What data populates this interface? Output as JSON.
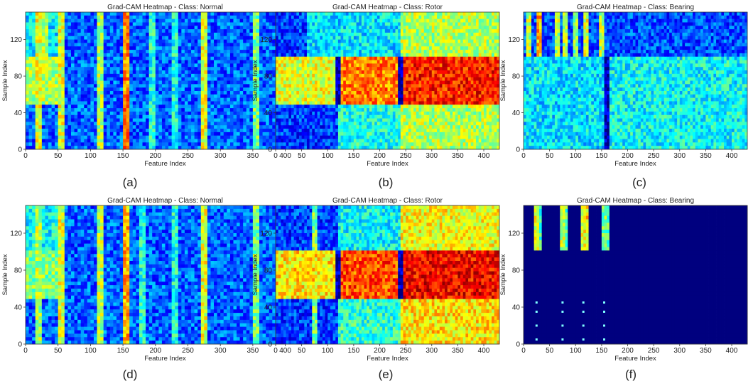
{
  "figure": {
    "colormap": "jet",
    "colors": {
      "jet": [
        "#00007f",
        "#0000ff",
        "#007fff",
        "#00ffff",
        "#7fff7f",
        "#ffff00",
        "#ff7f00",
        "#ff0000",
        "#7f0000"
      ],
      "background": "#ffffff",
      "text": "#222222"
    }
  },
  "chart_data": [
    {
      "type": "heatmap",
      "panel_label": "(a)",
      "title": "Grad-CAM Heatmap - Class: Normal",
      "xlabel": "Feature Index",
      "ylabel": "Sample Index",
      "xlim": [
        0,
        430
      ],
      "ylim": [
        0,
        150
      ],
      "xticks": [
        0,
        50,
        100,
        150,
        200,
        250,
        300,
        350,
        400
      ],
      "yticks": [
        0,
        40,
        80,
        120
      ],
      "base_intensity": 0.22,
      "blocks": [
        {
          "x0": 0,
          "x1": 60,
          "y0": 50,
          "y1": 100,
          "v": 0.55
        },
        {
          "x0": 0,
          "x1": 60,
          "y0": 100,
          "y1": 150,
          "v": 0.35
        }
      ],
      "stripes": [
        {
          "x": 20,
          "y0": 0,
          "y1": 150,
          "v": 0.6
        },
        {
          "x": 30,
          "y0": 50,
          "y1": 150,
          "v": 0.55
        },
        {
          "x": 55,
          "y0": 0,
          "y1": 150,
          "v": 0.6
        },
        {
          "x": 115,
          "y0": 0,
          "y1": 150,
          "v": 0.55
        },
        {
          "x": 155,
          "y0": 0,
          "y1": 150,
          "v": 0.75
        },
        {
          "x": 195,
          "y0": 0,
          "y1": 150,
          "v": 0.4
        },
        {
          "x": 230,
          "y0": 0,
          "y1": 150,
          "v": 0.4
        },
        {
          "x": 275,
          "y0": 0,
          "y1": 150,
          "v": 0.6
        },
        {
          "x": 355,
          "y0": 0,
          "y1": 150,
          "v": 0.5
        },
        {
          "x": 400,
          "y0": 0,
          "y1": 150,
          "v": 0.4
        }
      ]
    },
    {
      "type": "heatmap",
      "panel_label": "(b)",
      "title": "Grad-CAM Heatmap - Class: Rotor",
      "xlabel": "Feature Index",
      "ylabel": "Sample Index",
      "xlim": [
        0,
        430
      ],
      "ylim": [
        0,
        150
      ],
      "xticks": [
        0,
        50,
        100,
        150,
        200,
        250,
        300,
        350,
        400
      ],
      "yticks": [
        0,
        40,
        80,
        120
      ],
      "base_intensity": 0.18,
      "blocks": [
        {
          "x0": 0,
          "x1": 120,
          "y0": 50,
          "y1": 100,
          "v": 0.6
        },
        {
          "x0": 120,
          "x1": 240,
          "y0": 50,
          "y1": 100,
          "v": 0.75
        },
        {
          "x0": 240,
          "x1": 430,
          "y0": 50,
          "y1": 100,
          "v": 0.85
        },
        {
          "x0": 120,
          "x1": 240,
          "y0": 0,
          "y1": 50,
          "v": 0.4
        },
        {
          "x0": 240,
          "x1": 430,
          "y0": 0,
          "y1": 50,
          "v": 0.55
        },
        {
          "x0": 60,
          "x1": 240,
          "y0": 100,
          "y1": 150,
          "v": 0.35
        },
        {
          "x0": 240,
          "x1": 430,
          "y0": 100,
          "y1": 150,
          "v": 0.55
        }
      ],
      "stripes": [
        {
          "x": 120,
          "y0": 50,
          "y1": 100,
          "v": 0.05
        },
        {
          "x": 240,
          "y0": 50,
          "y1": 100,
          "v": 0.05
        },
        {
          "x": 310,
          "y0": 50,
          "y1": 100,
          "v": 0.2
        },
        {
          "x": 380,
          "y0": 50,
          "y1": 100,
          "v": 0.3
        },
        {
          "x": 405,
          "y0": 50,
          "y1": 100,
          "v": 0.3
        }
      ]
    },
    {
      "type": "heatmap",
      "panel_label": "(c)",
      "title": "Grad-CAM Heatmap - Class: Bearing",
      "xlabel": "Feature Index",
      "ylabel": "Sample Index",
      "xlim": [
        0,
        430
      ],
      "ylim": [
        0,
        150
      ],
      "xticks": [
        0,
        50,
        100,
        150,
        200,
        250,
        300,
        350,
        400
      ],
      "yticks": [
        0,
        40,
        80,
        120
      ],
      "base_intensity": 0.2,
      "blocks": [
        {
          "x0": 0,
          "x1": 160,
          "y0": 0,
          "y1": 100,
          "v": 0.35
        },
        {
          "x0": 160,
          "x1": 430,
          "y0": 0,
          "y1": 100,
          "v": 0.38
        }
      ],
      "stripes": [
        {
          "x": 10,
          "y0": 100,
          "y1": 150,
          "v": 0.55
        },
        {
          "x": 30,
          "y0": 100,
          "y1": 150,
          "v": 0.7
        },
        {
          "x": 65,
          "y0": 100,
          "y1": 150,
          "v": 0.55
        },
        {
          "x": 80,
          "y0": 100,
          "y1": 150,
          "v": 0.55
        },
        {
          "x": 100,
          "y0": 100,
          "y1": 150,
          "v": 0.5
        },
        {
          "x": 120,
          "y0": 100,
          "y1": 150,
          "v": 0.6
        },
        {
          "x": 150,
          "y0": 100,
          "y1": 150,
          "v": 0.55
        },
        {
          "x": 160,
          "y0": 0,
          "y1": 100,
          "v": 0.05
        }
      ]
    },
    {
      "type": "heatmap",
      "panel_label": "(d)",
      "title": "Grad-CAM Heatmap - Class: Normal",
      "xlabel": "Feature Index",
      "ylabel": "Sample Index",
      "xlim": [
        0,
        430
      ],
      "ylim": [
        0,
        150
      ],
      "xticks": [
        0,
        50,
        100,
        150,
        200,
        250,
        300,
        350,
        400
      ],
      "yticks": [
        0,
        40,
        80,
        120
      ],
      "base_intensity": 0.22,
      "blocks": [
        {
          "x0": 0,
          "x1": 60,
          "y0": 50,
          "y1": 100,
          "v": 0.5
        },
        {
          "x0": 0,
          "x1": 60,
          "y0": 100,
          "y1": 150,
          "v": 0.38
        }
      ],
      "stripes": [
        {
          "x": 20,
          "y0": 0,
          "y1": 150,
          "v": 0.55
        },
        {
          "x": 55,
          "y0": 0,
          "y1": 150,
          "v": 0.6
        },
        {
          "x": 115,
          "y0": 0,
          "y1": 150,
          "v": 0.55
        },
        {
          "x": 155,
          "y0": 0,
          "y1": 150,
          "v": 0.7
        },
        {
          "x": 180,
          "y0": 0,
          "y1": 150,
          "v": 0.4
        },
        {
          "x": 230,
          "y0": 0,
          "y1": 150,
          "v": 0.4
        },
        {
          "x": 275,
          "y0": 0,
          "y1": 150,
          "v": 0.6
        },
        {
          "x": 355,
          "y0": 0,
          "y1": 150,
          "v": 0.5
        }
      ]
    },
    {
      "type": "heatmap",
      "panel_label": "(e)",
      "title": "Grad-CAM Heatmap - Class: Rotor",
      "xlabel": "Feature Index",
      "ylabel": "Sample Index",
      "xlim": [
        0,
        430
      ],
      "ylim": [
        0,
        150
      ],
      "xticks": [
        0,
        50,
        100,
        150,
        200,
        250,
        300,
        350,
        400
      ],
      "yticks": [
        0,
        40,
        80,
        120
      ],
      "base_intensity": 0.18,
      "blocks": [
        {
          "x0": 0,
          "x1": 120,
          "y0": 50,
          "y1": 100,
          "v": 0.65
        },
        {
          "x0": 120,
          "x1": 240,
          "y0": 50,
          "y1": 100,
          "v": 0.8
        },
        {
          "x0": 240,
          "x1": 430,
          "y0": 50,
          "y1": 100,
          "v": 0.88
        },
        {
          "x0": 120,
          "x1": 240,
          "y0": 0,
          "y1": 50,
          "v": 0.42
        },
        {
          "x0": 240,
          "x1": 430,
          "y0": 0,
          "y1": 50,
          "v": 0.65
        },
        {
          "x0": 120,
          "x1": 240,
          "y0": 100,
          "y1": 150,
          "v": 0.38
        },
        {
          "x0": 240,
          "x1": 430,
          "y0": 100,
          "y1": 150,
          "v": 0.62
        }
      ],
      "stripes": [
        {
          "x": 75,
          "y0": 0,
          "y1": 150,
          "v": 0.5
        },
        {
          "x": 120,
          "y0": 50,
          "y1": 100,
          "v": 0.05
        },
        {
          "x": 240,
          "y0": 50,
          "y1": 100,
          "v": 0.05
        },
        {
          "x": 320,
          "y0": 50,
          "y1": 100,
          "v": 0.5
        }
      ]
    },
    {
      "type": "heatmap",
      "panel_label": "(f)",
      "title": "Grad-CAM Heatmap - Class: Bearing",
      "xlabel": "Feature Index",
      "ylabel": "Sample Index",
      "xlim": [
        0,
        430
      ],
      "ylim": [
        0,
        150
      ],
      "xticks": [
        0,
        50,
        100,
        150,
        200,
        250,
        300,
        350,
        400
      ],
      "yticks": [
        0,
        40,
        80,
        120
      ],
      "base_intensity": 0.0,
      "blocks": [],
      "stripes": [
        {
          "x": 25,
          "y0": 100,
          "y1": 150,
          "v": 0.6
        },
        {
          "x": 30,
          "y0": 100,
          "y1": 150,
          "v": 0.45
        },
        {
          "x": 75,
          "y0": 100,
          "y1": 150,
          "v": 0.55
        },
        {
          "x": 80,
          "y0": 100,
          "y1": 150,
          "v": 0.45
        },
        {
          "x": 115,
          "y0": 100,
          "y1": 150,
          "v": 0.6
        },
        {
          "x": 120,
          "y0": 100,
          "y1": 150,
          "v": 0.65
        },
        {
          "x": 155,
          "y0": 100,
          "y1": 150,
          "v": 0.5
        },
        {
          "x": 160,
          "y0": 100,
          "y1": 150,
          "v": 0.45
        }
      ],
      "dots": [
        {
          "x": 25,
          "y": 45
        },
        {
          "x": 75,
          "y": 45
        },
        {
          "x": 115,
          "y": 45
        },
        {
          "x": 155,
          "y": 45
        },
        {
          "x": 25,
          "y": 35
        },
        {
          "x": 75,
          "y": 35
        },
        {
          "x": 115,
          "y": 35
        },
        {
          "x": 155,
          "y": 35
        },
        {
          "x": 25,
          "y": 20
        },
        {
          "x": 75,
          "y": 20
        },
        {
          "x": 115,
          "y": 20
        },
        {
          "x": 155,
          "y": 20
        },
        {
          "x": 25,
          "y": 5
        },
        {
          "x": 75,
          "y": 5
        },
        {
          "x": 115,
          "y": 5
        },
        {
          "x": 155,
          "y": 5
        }
      ]
    }
  ]
}
